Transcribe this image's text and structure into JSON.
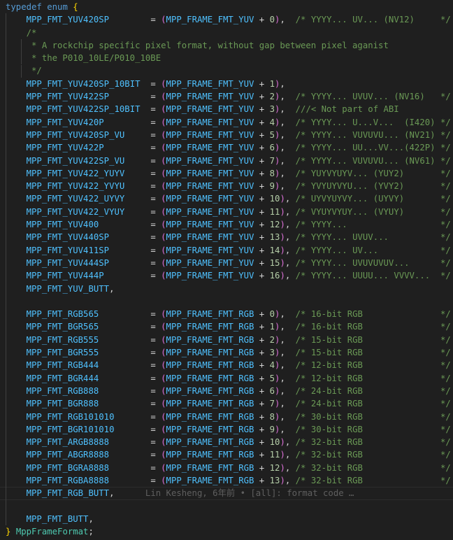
{
  "editor": {
    "colors": {
      "background": "#1f1f1f",
      "keyword": "#569cd6",
      "enum_member": "#4fc1ff",
      "type": "#4ec9b0",
      "brace": "#ffd700",
      "paren": "#da70d6",
      "number": "#b5cea8",
      "comment": "#6a9955"
    },
    "lines": [
      {
        "type": "open",
        "keyword1": "typedef",
        "keyword2": "enum",
        "brace": "{"
      },
      {
        "type": "enum",
        "name": "MPP_FMT_YUV420SP",
        "base": "MPP_FRAME_FMT_YUV",
        "offset": "0",
        "comment": "YYYY... UV... (NV12)"
      },
      {
        "type": "comment",
        "text": "    /*"
      },
      {
        "type": "comment",
        "text": "     * A rockchip specific pixel format, without gap between pixel aganist",
        "guide": true
      },
      {
        "type": "comment",
        "text": "     * the P010_10LE/P010_10BE",
        "guide": true
      },
      {
        "type": "comment",
        "text": "     */",
        "guide": true
      },
      {
        "type": "enum",
        "name": "MPP_FMT_YUV420SP_10BIT",
        "base": "MPP_FRAME_FMT_YUV",
        "offset": "1"
      },
      {
        "type": "enum",
        "name": "MPP_FMT_YUV422SP",
        "base": "MPP_FRAME_FMT_YUV",
        "offset": "2",
        "comment": "YYYY... UVUV... (NV16)"
      },
      {
        "type": "enum",
        "name": "MPP_FMT_YUV422SP_10BIT",
        "base": "MPP_FRAME_FMT_YUV",
        "offset": "3",
        "line_comment": "///< Not part of ABI"
      },
      {
        "type": "enum",
        "name": "MPP_FMT_YUV420P",
        "base": "MPP_FRAME_FMT_YUV",
        "offset": "4",
        "comment": "YYYY... U...V...  (I420)"
      },
      {
        "type": "enum",
        "name": "MPP_FMT_YUV420SP_VU",
        "base": "MPP_FRAME_FMT_YUV",
        "offset": "5",
        "comment": "YYYY... VUVUVU... (NV21)"
      },
      {
        "type": "enum",
        "name": "MPP_FMT_YUV422P",
        "base": "MPP_FRAME_FMT_YUV",
        "offset": "6",
        "comment": "YYYY... UU...VV...(422P)"
      },
      {
        "type": "enum",
        "name": "MPP_FMT_YUV422SP_VU",
        "base": "MPP_FRAME_FMT_YUV",
        "offset": "7",
        "comment": "YYYY... VUVUVU... (NV61)"
      },
      {
        "type": "enum",
        "name": "MPP_FMT_YUV422_YUYV",
        "base": "MPP_FRAME_FMT_YUV",
        "offset": "8",
        "comment": "YUYVYUYV... (YUY2)"
      },
      {
        "type": "enum",
        "name": "MPP_FMT_YUV422_YVYU",
        "base": "MPP_FRAME_FMT_YUV",
        "offset": "9",
        "comment": "YVYUYVYU... (YVY2)"
      },
      {
        "type": "enum",
        "name": "MPP_FMT_YUV422_UYVY",
        "base": "MPP_FRAME_FMT_YUV",
        "offset": "10",
        "comment": "UYVYUYVY... (UYVY)"
      },
      {
        "type": "enum",
        "name": "MPP_FMT_YUV422_VYUY",
        "base": "MPP_FRAME_FMT_YUV",
        "offset": "11",
        "comment": "VYUYVYUY... (VYUY)"
      },
      {
        "type": "enum",
        "name": "MPP_FMT_YUV400",
        "base": "MPP_FRAME_FMT_YUV",
        "offset": "12",
        "comment": "YYYY..."
      },
      {
        "type": "enum",
        "name": "MPP_FMT_YUV440SP",
        "base": "MPP_FRAME_FMT_YUV",
        "offset": "13",
        "comment": "YYYY... UVUV..."
      },
      {
        "type": "enum",
        "name": "MPP_FMT_YUV411SP",
        "base": "MPP_FRAME_FMT_YUV",
        "offset": "14",
        "comment": "YYYY... UV..."
      },
      {
        "type": "enum",
        "name": "MPP_FMT_YUV444SP",
        "base": "MPP_FRAME_FMT_YUV",
        "offset": "15",
        "comment": "YYYY... UVUVUVUV..."
      },
      {
        "type": "enum",
        "name": "MPP_FMT_YUV444P",
        "base": "MPP_FRAME_FMT_YUV",
        "offset": "16",
        "comment": "YYYY... UUUU... VVVV..."
      },
      {
        "type": "member",
        "name": "MPP_FMT_YUV_BUTT"
      },
      {
        "type": "blank"
      },
      {
        "type": "enum",
        "name": "MPP_FMT_RGB565",
        "base": "MPP_FRAME_FMT_RGB",
        "offset": "0",
        "comment": "16-bit RGB"
      },
      {
        "type": "enum",
        "name": "MPP_FMT_BGR565",
        "base": "MPP_FRAME_FMT_RGB",
        "offset": "1",
        "comment": "16-bit RGB"
      },
      {
        "type": "enum",
        "name": "MPP_FMT_RGB555",
        "base": "MPP_FRAME_FMT_RGB",
        "offset": "2",
        "comment": "15-bit RGB"
      },
      {
        "type": "enum",
        "name": "MPP_FMT_BGR555",
        "base": "MPP_FRAME_FMT_RGB",
        "offset": "3",
        "comment": "15-bit RGB"
      },
      {
        "type": "enum",
        "name": "MPP_FMT_RGB444",
        "base": "MPP_FRAME_FMT_RGB",
        "offset": "4",
        "comment": "12-bit RGB"
      },
      {
        "type": "enum",
        "name": "MPP_FMT_BGR444",
        "base": "MPP_FRAME_FMT_RGB",
        "offset": "5",
        "comment": "12-bit RGB"
      },
      {
        "type": "enum",
        "name": "MPP_FMT_RGB888",
        "base": "MPP_FRAME_FMT_RGB",
        "offset": "6",
        "comment": "24-bit RGB"
      },
      {
        "type": "enum",
        "name": "MPP_FMT_BGR888",
        "base": "MPP_FRAME_FMT_RGB",
        "offset": "7",
        "comment": "24-bit RGB"
      },
      {
        "type": "enum",
        "name": "MPP_FMT_RGB101010",
        "base": "MPP_FRAME_FMT_RGB",
        "offset": "8",
        "comment": "30-bit RGB"
      },
      {
        "type": "enum",
        "name": "MPP_FMT_BGR101010",
        "base": "MPP_FRAME_FMT_RGB",
        "offset": "9",
        "comment": "30-bit RGB"
      },
      {
        "type": "enum",
        "name": "MPP_FMT_ARGB8888",
        "base": "MPP_FRAME_FMT_RGB",
        "offset": "10",
        "comment": "32-bit RGB"
      },
      {
        "type": "enum",
        "name": "MPP_FMT_ABGR8888",
        "base": "MPP_FRAME_FMT_RGB",
        "offset": "11",
        "comment": "32-bit RGB"
      },
      {
        "type": "enum",
        "name": "MPP_FMT_BGRA8888",
        "base": "MPP_FRAME_FMT_RGB",
        "offset": "12",
        "comment": "32-bit RGB"
      },
      {
        "type": "enum",
        "name": "MPP_FMT_RGBA8888",
        "base": "MPP_FRAME_FMT_RGB",
        "offset": "13",
        "comment": "32-bit RGB"
      },
      {
        "type": "member",
        "name": "MPP_FMT_RGB_BUTT",
        "current": true,
        "blame": "Lin Kesheng, 6年前 • [all]: format code …"
      },
      {
        "type": "blank"
      },
      {
        "type": "member",
        "name": "MPP_FMT_BUTT"
      },
      {
        "type": "close",
        "brace": "}",
        "typename": "MppFrameFormat"
      }
    ]
  }
}
